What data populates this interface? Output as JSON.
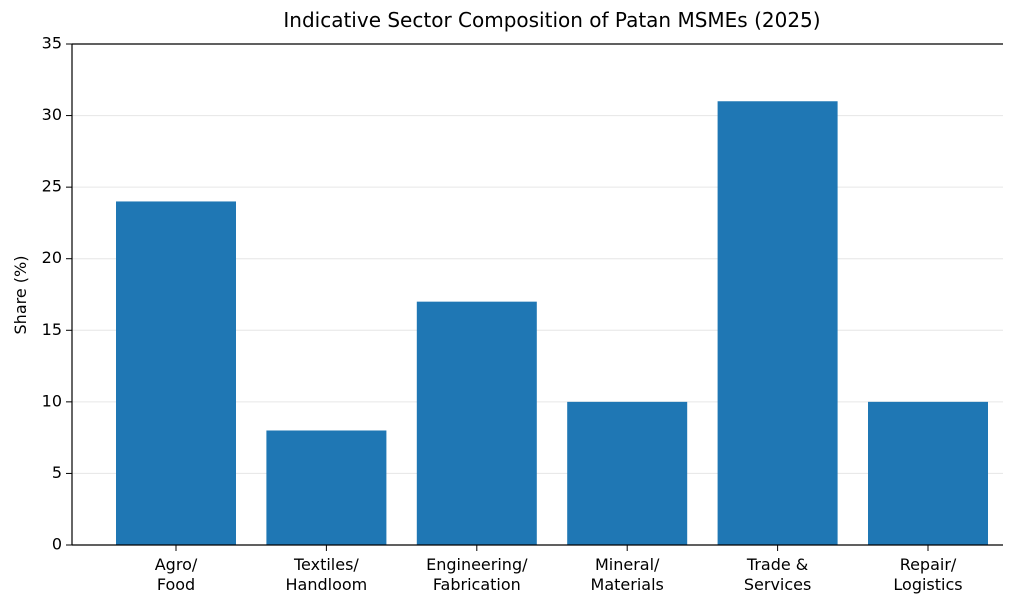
{
  "chart_data": {
    "type": "bar",
    "title": "Indicative Sector Composition of Patan MSMEs (2025)",
    "y_label": "Share (%)",
    "categories": [
      [
        "Agro/",
        "Food"
      ],
      [
        "Textiles/",
        "Handloom"
      ],
      [
        "Engineering/",
        "Fabrication"
      ],
      [
        "Mineral/",
        "Materials"
      ],
      [
        "Trade &",
        "Services"
      ],
      [
        "Repair/",
        "Logistics"
      ]
    ],
    "values": [
      24,
      8,
      17,
      10,
      31,
      10
    ],
    "color": "#1f77b4",
    "ylim": [
      0,
      35
    ],
    "yticks": [
      0,
      5,
      10,
      15,
      20,
      25,
      30,
      35
    ],
    "grid": true
  }
}
